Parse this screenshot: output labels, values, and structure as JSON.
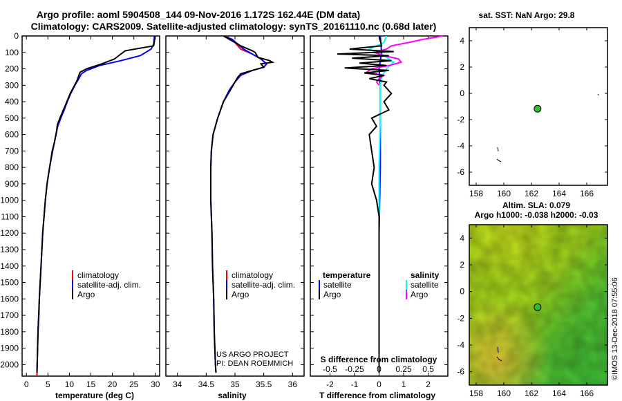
{
  "title_line1": "Argo profile: aoml 5904508_144 09-Nov-2016 1.172S 162.44E (DM data)",
  "title_line2": "Climatology: CARS2009. Satellite-adjusted climatology: synTS_20161110.nc (0.68d later)",
  "credit_line1": "US ARGO PROJECT",
  "credit_line2": "PI: DEAN ROEMMICH",
  "timestamp": "©IMOS 13-Dec-2018 07:55:06",
  "colors": {
    "climatology": "#ff0000",
    "satellite": "#0000ff",
    "argo": "#000000",
    "sat_t": "#0000ff",
    "sat_s": "#00ffff",
    "argo_s": "#ff00ff"
  },
  "chart_data": [
    {
      "id": "temperature",
      "type": "line",
      "xlabel": "temperature (deg C)",
      "xlim": [
        -1,
        31
      ],
      "xticks": [
        0,
        5,
        10,
        15,
        20,
        25,
        30
      ],
      "xtick_labels": [
        "0",
        "5",
        "10",
        "15",
        "20",
        "25",
        "30"
      ],
      "ylim": [
        0,
        2070
      ],
      "yticks": [
        0,
        100,
        200,
        300,
        400,
        500,
        600,
        700,
        800,
        900,
        1000,
        1100,
        1200,
        1300,
        1400,
        1500,
        1600,
        1700,
        1800,
        1900,
        2000
      ],
      "ytick_labels": [
        "0",
        "100",
        "200",
        "300",
        "400",
        "500",
        "600",
        "700",
        "800",
        "900",
        "1000",
        "1100",
        "1200",
        "1300",
        "1400",
        "1500",
        "1600",
        "1700",
        "1800",
        "1900",
        "2000"
      ],
      "legend": [
        "climatology",
        "satellite-adj. clim.",
        "Argo"
      ],
      "series": [
        {
          "name": "climatology",
          "color": "#ff0000",
          "depth": [
            1900,
            1950,
            2000,
            2050,
            2070
          ],
          "values": [
            2.6,
            2.55,
            2.5,
            2.45,
            2.45
          ]
        },
        {
          "name": "satellite-adj. clim.",
          "color": "#0000ff",
          "depth": [
            0,
            50,
            80,
            120,
            150,
            180,
            210,
            230,
            260,
            300,
            350,
            400,
            450,
            500,
            550,
            600,
            700,
            800,
            900,
            1000,
            1100,
            1200,
            1300,
            1400,
            1500,
            1600,
            1700,
            1800,
            1900,
            2000,
            2050
          ],
          "values": [
            29.8,
            29.6,
            29.0,
            26.5,
            22.0,
            17.0,
            14.0,
            12.8,
            12.2,
            11.3,
            10.3,
            9.5,
            8.8,
            8.0,
            7.3,
            6.9,
            6.1,
            5.4,
            4.8,
            4.4,
            4.1,
            3.8,
            3.6,
            3.4,
            3.2,
            3.0,
            2.9,
            2.7,
            2.6,
            2.5,
            2.45
          ]
        },
        {
          "name": "Argo",
          "color": "#000000",
          "depth": [
            0,
            30,
            60,
            90,
            110,
            140,
            170,
            200,
            220,
            240,
            270,
            300,
            350,
            400,
            450,
            500,
            540,
            580,
            650,
            700,
            800,
            900,
            1000,
            1200,
            1400,
            1600,
            1800,
            2000,
            2050
          ],
          "values": [
            29.9,
            29.8,
            29.6,
            23.0,
            22.0,
            20.5,
            17.5,
            14.0,
            12.5,
            12.2,
            11.8,
            11.2,
            10.2,
            9.4,
            8.6,
            7.8,
            7.2,
            7.0,
            6.5,
            6.0,
            5.4,
            4.8,
            4.4,
            3.8,
            3.4,
            3.0,
            2.7,
            2.5,
            2.45
          ]
        }
      ]
    },
    {
      "id": "salinity",
      "type": "line",
      "xlabel": "salinity",
      "xlim": [
        33.8,
        36.2
      ],
      "xticks": [
        34,
        34.5,
        35,
        35.5,
        36
      ],
      "xtick_labels": [
        "34",
        "34.5",
        "35",
        "35.5",
        "36"
      ],
      "ylim": [
        0,
        2070
      ],
      "legend": [
        "climatology",
        "satellite-adj. clim.",
        "Argo"
      ],
      "series": [
        {
          "name": "climatology",
          "color": "#ff0000",
          "depth": [
            0,
            40,
            80,
            110,
            140,
            170,
            190
          ],
          "values": [
            34.85,
            35.0,
            35.1,
            35.3,
            35.45,
            35.55,
            35.5
          ]
        },
        {
          "name": "satellite-adj. clim.",
          "color": "#0000ff",
          "depth": [
            0,
            20,
            50,
            80,
            110,
            140,
            170,
            190,
            210,
            240,
            280,
            330,
            400,
            500,
            600,
            700,
            800,
            900,
            1000,
            1200,
            1400,
            1600,
            1800,
            2000,
            2050
          ],
          "values": [
            34.8,
            34.95,
            35.05,
            35.15,
            35.3,
            35.45,
            35.55,
            35.5,
            35.3,
            35.1,
            35.0,
            34.9,
            34.8,
            34.7,
            34.62,
            34.59,
            34.58,
            34.58,
            34.58,
            34.6,
            34.61,
            34.63,
            34.64,
            34.66,
            34.67
          ]
        },
        {
          "name": "Argo",
          "color": "#000000",
          "depth": [
            0,
            30,
            60,
            90,
            100,
            130,
            150,
            160,
            170,
            190,
            210,
            230,
            250,
            280,
            330,
            400,
            500,
            600,
            700,
            800,
            900,
            1000,
            1200,
            1400,
            1600,
            1800,
            2000,
            2050
          ],
          "values": [
            34.8,
            34.95,
            35.1,
            35.3,
            35.35,
            35.4,
            35.6,
            35.65,
            35.45,
            35.5,
            35.3,
            35.1,
            35.05,
            35.0,
            34.92,
            34.8,
            34.7,
            34.62,
            34.59,
            34.58,
            34.58,
            34.58,
            34.6,
            34.61,
            34.63,
            34.64,
            34.66,
            34.67
          ]
        }
      ]
    },
    {
      "id": "difference",
      "type": "line",
      "xlabel": "T difference from climatology",
      "xlabel_top": "S difference from climatology",
      "xlim": [
        -2.8,
        2.8
      ],
      "xticks": [
        -2,
        -1,
        0,
        1,
        2
      ],
      "xtick_labels": [
        "-2",
        "-1",
        "0",
        "1",
        "2"
      ],
      "s_xticks": [
        -2,
        -1,
        0,
        1,
        2
      ],
      "s_xtick_labels": [
        "-0.5",
        "-0.25",
        "0",
        "0.25",
        "0.5"
      ],
      "ylim": [
        0,
        2070
      ],
      "legend_t_title": "temperature",
      "legend_s_title": "salinity",
      "legend_t": [
        "satellite",
        "Argo"
      ],
      "legend_s": [
        "satellite",
        "Argo"
      ],
      "series": [
        {
          "name": "T satellite",
          "color": "#0000ff",
          "depth": [
            0,
            100,
            200,
            300,
            500,
            800,
            1200,
            1600,
            2050
          ],
          "values": [
            0.05,
            0.1,
            0.0,
            0.05,
            0.05,
            0.05,
            0.0,
            0.0,
            0.0
          ]
        },
        {
          "name": "S satellite",
          "color": "#00ffff",
          "depth": [
            0,
            40,
            80,
            120,
            160,
            200,
            250,
            300,
            400,
            500,
            800,
            1200,
            1600,
            2050
          ],
          "values": [
            0.3,
            0.2,
            -0.4,
            0.2,
            0.6,
            0.3,
            0.1,
            0.05,
            0.05,
            0.05,
            0.0,
            0.0,
            0.0,
            0.0
          ]
        },
        {
          "name": "S Argo",
          "color": "#ff00ff",
          "depth": [
            0,
            20,
            40,
            60,
            80,
            100,
            120,
            140,
            160,
            180,
            200,
            220,
            240,
            260,
            280,
            300
          ],
          "values": [
            2.6,
            1.8,
            1.2,
            0.5,
            0.3,
            -0.2,
            0.2,
            0.8,
            0.9,
            0.4,
            -0.3,
            -0.5,
            0.2,
            0.0,
            -0.1,
            0.0
          ]
        },
        {
          "name": "T Argo",
          "color": "#000000",
          "depth": [
            0,
            60,
            80,
            95,
            110,
            120,
            135,
            150,
            165,
            180,
            195,
            210,
            225,
            240,
            260,
            280,
            300,
            350,
            400,
            450,
            500,
            550,
            600,
            700,
            800,
            900,
            1000,
            1100,
            1200,
            1400,
            1600,
            1800,
            2000,
            2050
          ],
          "values": [
            0.0,
            0.1,
            -1.2,
            0.6,
            -1.7,
            0.4,
            -1.1,
            0.5,
            -0.8,
            0.3,
            -1.4,
            0.4,
            -0.6,
            0.2,
            -0.4,
            0.3,
            0.2,
            0.5,
            0.2,
            0.4,
            -0.3,
            -0.1,
            -0.4,
            -0.3,
            -0.2,
            -0.3,
            -0.1,
            0.0,
            0.0,
            0.0,
            0.0,
            0.0,
            0.0,
            0.0
          ]
        }
      ]
    },
    {
      "id": "map_sst",
      "type": "scatter",
      "title": "sat. SST: NaN Argo: 29.8",
      "xlim": [
        157.5,
        167.5
      ],
      "xticks": [
        158,
        160,
        162,
        164,
        166
      ],
      "xtick_labels": [
        "158",
        "160",
        "162",
        "164",
        "166"
      ],
      "ylim": [
        -7,
        5
      ],
      "yticks": [
        4,
        2,
        0,
        -2,
        -4,
        -6
      ],
      "ytick_labels": [
        "4",
        "2",
        "0",
        "-2",
        "-4",
        "-6"
      ],
      "point": {
        "lon": 162.44,
        "lat": -1.172
      }
    },
    {
      "id": "map_sla",
      "type": "heatmap",
      "title_line1": "Altim. SLA: 0.079",
      "title_line2": "Argo h1000: -0.038 h2000: -0.03",
      "xlim": [
        157.5,
        167.5
      ],
      "xticks": [
        158,
        160,
        162,
        164,
        166
      ],
      "xtick_labels": [
        "158",
        "160",
        "162",
        "164",
        "166"
      ],
      "ylim": [
        -7,
        5
      ],
      "yticks": [
        4,
        2,
        0,
        -2,
        -4,
        -6
      ],
      "ytick_labels": [
        "4",
        "2",
        "0",
        "-2",
        "-4",
        "-6"
      ],
      "point": {
        "lon": 162.44,
        "lat": -1.172
      }
    }
  ]
}
